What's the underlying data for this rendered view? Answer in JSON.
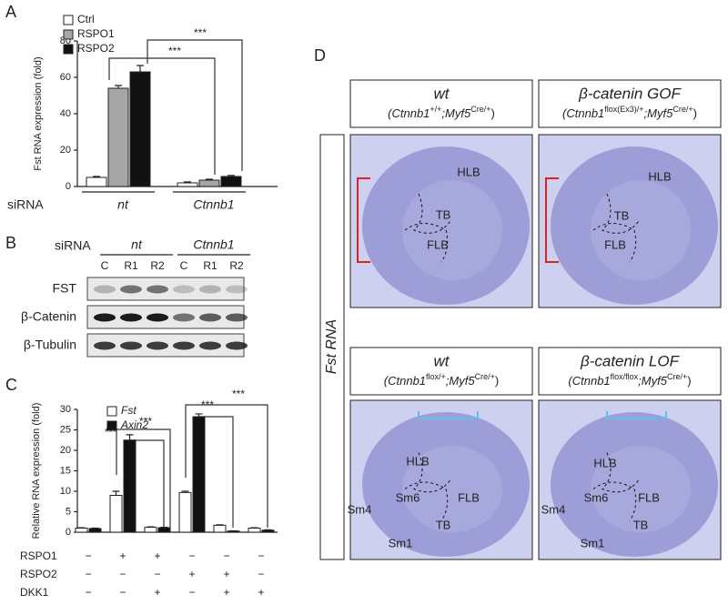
{
  "panel_labels": [
    "A",
    "B",
    "C",
    "D"
  ],
  "chart_data": [
    {
      "type": "bar",
      "ylabel": "Fst RNA expression (fold)",
      "group_title": "siRNA",
      "categories": [
        "nt",
        "Ctnnb1"
      ],
      "series": [
        {
          "name": "Ctrl",
          "color": "#ffffff",
          "values": [
            5,
            2
          ],
          "errors": [
            0.5,
            0.5
          ]
        },
        {
          "name": "RSPO1",
          "color": "#a6a6a6",
          "values": [
            54,
            3.5
          ],
          "errors": [
            1.5,
            0.5
          ]
        },
        {
          "name": "RSPO2",
          "color": "#111111",
          "values": [
            63,
            5.5
          ],
          "errors": [
            3.5,
            0.6
          ]
        }
      ],
      "ylim": [
        0,
        80
      ],
      "yticks": [
        0,
        20,
        40,
        60,
        80
      ],
      "annotations": [
        "***",
        "***"
      ]
    },
    {
      "type": "bar",
      "ylabel": "Relative RNA expression (fold)",
      "series": [
        {
          "name": "Fst",
          "color": "#ffffff",
          "values": [
            1,
            9,
            1.2,
            9.7,
            1.7,
            1
          ],
          "errors": [
            0.1,
            1,
            0.1,
            0.3,
            0.1,
            0.1
          ]
        },
        {
          "name": "Axin2",
          "color": "#111111",
          "values": [
            0.9,
            22.5,
            1.1,
            28.2,
            0.3,
            0.5
          ],
          "errors": [
            0.1,
            1.3,
            0.1,
            0.7,
            0.05,
            0.1
          ]
        }
      ],
      "ylim": [
        0,
        30
      ],
      "yticks": [
        0,
        5,
        10,
        15,
        20,
        25,
        30
      ],
      "condition_rows": [
        {
          "name": "RSPO1",
          "signs": [
            "−",
            "+",
            "+",
            "−",
            "−",
            "−"
          ]
        },
        {
          "name": "RSPO2",
          "signs": [
            "−",
            "−",
            "−",
            "+",
            "+",
            "−"
          ]
        },
        {
          "name": "DKK1",
          "signs": [
            "−",
            "−",
            "+",
            "−",
            "+",
            "+"
          ]
        }
      ],
      "annotations": [
        "***",
        "***",
        "***",
        "***"
      ]
    }
  ],
  "blot": {
    "group_title": "siRNA",
    "groups": [
      "nt",
      "Ctnnb1"
    ],
    "lanes": [
      "C",
      "R1",
      "R2",
      "C",
      "R1",
      "R2"
    ],
    "rows": [
      "FST",
      "β-Catenin",
      "β-Tubulin"
    ]
  },
  "side_label": "Fst RNA",
  "embryo_panels": [
    {
      "title": "wt",
      "genotype": [
        "(Ctnnb1",
        "+/+",
        ";Myf5",
        "Cre/+",
        ")"
      ],
      "labels": [
        "HLB",
        "TB",
        "FLB"
      ]
    },
    {
      "title": "β-catenin GOF",
      "genotype": [
        "(Ctnnb1",
        "flox(Ex3)/+",
        ";Myf5",
        "Cre/+",
        ")"
      ],
      "labels": [
        "HLB",
        "TB",
        "FLB"
      ]
    },
    {
      "title": "wt",
      "genotype": [
        "(Ctnnb1",
        "flox/+",
        ";Myf5",
        "Cre/+",
        ")"
      ],
      "labels": [
        "HLB",
        "Sm6",
        "FLB",
        "TB",
        "Sm4",
        "Sm1"
      ]
    },
    {
      "title": "β-catenin LOF",
      "genotype": [
        "(Ctnnb1",
        "flox/flox",
        ";Myf5",
        "Cre/+",
        ")"
      ],
      "labels": [
        "HLB",
        "Sm6",
        "FLB",
        "TB",
        "Sm4",
        "Sm1"
      ]
    }
  ]
}
